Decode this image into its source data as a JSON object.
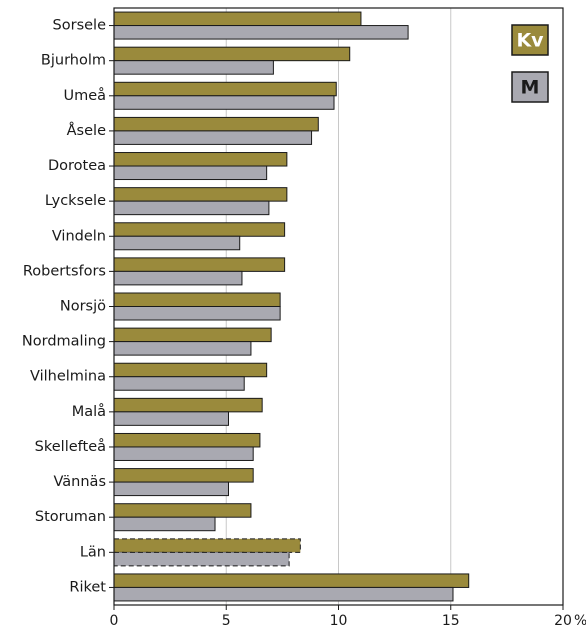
{
  "chart_data": {
    "type": "bar",
    "orientation": "horizontal",
    "categories": [
      "Sorsele",
      "Bjurholm",
      "Umeå",
      "Åsele",
      "Dorotea",
      "Lycksele",
      "Vindeln",
      "Robertsfors",
      "Norsjö",
      "Nordmaling",
      "Vilhelmina",
      "Malå",
      "Skellefteå",
      "Vännäs",
      "Storuman",
      "Län",
      "Riket"
    ],
    "series": [
      {
        "name": "Kv",
        "color": "#9a8a3c",
        "values": [
          11.0,
          10.5,
          9.9,
          9.1,
          7.7,
          7.7,
          7.6,
          7.6,
          7.4,
          7.0,
          6.8,
          6.6,
          6.5,
          6.2,
          6.1,
          8.3,
          15.8
        ]
      },
      {
        "name": "M",
        "color": "#a9a9b1",
        "values": [
          13.1,
          7.1,
          9.8,
          8.8,
          6.8,
          6.9,
          5.6,
          5.7,
          7.4,
          6.1,
          5.8,
          5.1,
          6.2,
          5.1,
          4.5,
          7.8,
          15.1
        ]
      }
    ],
    "dashed_categories": [
      "Län"
    ],
    "xlim": [
      0,
      20
    ],
    "xticks": [
      0,
      5,
      10,
      15,
      20
    ],
    "xtick_labels": [
      "0",
      "5",
      "10",
      "15",
      "20"
    ],
    "x_unit": "%",
    "grid": true,
    "legend_placement": "top-right",
    "xlabel": "",
    "ylabel": "",
    "title": ""
  }
}
